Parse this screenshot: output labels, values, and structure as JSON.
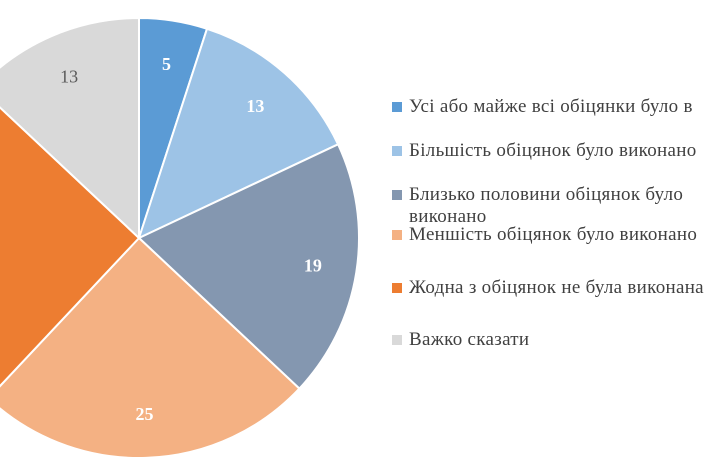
{
  "chart_data": {
    "type": "pie",
    "start_angle_deg": 0,
    "direction": "clockwise",
    "slices": [
      {
        "label": "Усі або майже всі обіцянки було виконано",
        "value": 5,
        "display": "5",
        "color": "#5B9BD5",
        "label_color": "#ffffff",
        "label_bold": true
      },
      {
        "label": "Більшість обіцянок було виконано",
        "value": 13,
        "display": "13",
        "color": "#9DC3E6",
        "label_color": "#ffffff",
        "label_bold": true
      },
      {
        "label": "Близько половини обіцянок було виконано",
        "value": 19,
        "display": "19",
        "color": "#8497B0",
        "label_color": "#ffffff",
        "label_bold": true
      },
      {
        "label": "Меншість обіцянок було виконано",
        "value": 25,
        "display": "25",
        "color": "#F4B183",
        "label_color": "#ffffff",
        "label_bold": true
      },
      {
        "label": "Жодна з обіцянок не була виконана",
        "value": 25,
        "display": "",
        "color": "#ED7D31",
        "label_color": "#ffffff",
        "label_bold": true
      },
      {
        "label": "Важко сказати",
        "value": 13,
        "display": "13",
        "color": "#D9D9D9",
        "label_color": "#595959",
        "label_bold": false
      }
    ],
    "legend_position": "right"
  },
  "legend": [
    {
      "text": "Усі або майже всі обіцянки було в",
      "color": "#5B9BD5"
    },
    {
      "text": "Більшість обіцянок було виконано",
      "color": "#9DC3E6"
    },
    {
      "text_line1": "Близько половини обіцянок було",
      "text_line2": "виконано",
      "color": "#8497B0"
    },
    {
      "text": "Меншість обіцянок було виконано",
      "color": "#F4B183"
    },
    {
      "text": "Жодна з обіцянок не була виконана",
      "color": "#ED7D31"
    },
    {
      "text": "Важко сказати",
      "color": "#D9D9D9"
    }
  ]
}
